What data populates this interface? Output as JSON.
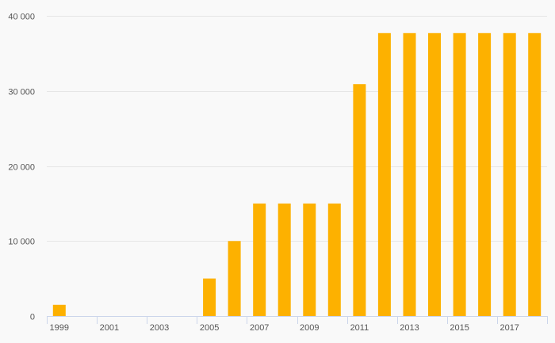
{
  "chart_data": {
    "type": "bar",
    "title": "",
    "xlabel": "",
    "ylabel": "",
    "categories": [
      "1999",
      "2000",
      "2001",
      "2002",
      "2003",
      "2004",
      "2005",
      "2006",
      "2007",
      "2008",
      "2009",
      "2010",
      "2011",
      "2012",
      "2013",
      "2014",
      "2015",
      "2016",
      "2017",
      "2018"
    ],
    "x_tick_labels": [
      "1999",
      "2001",
      "2003",
      "2005",
      "2007",
      "2009",
      "2011",
      "2013",
      "2015",
      "2017"
    ],
    "values": [
      1500,
      0,
      0,
      0,
      0,
      0,
      5000,
      10000,
      15000,
      15000,
      15000,
      15000,
      30900,
      37700,
      37700,
      37700,
      37700,
      37700,
      37700,
      37700
    ],
    "ylim": [
      0,
      40000
    ],
    "y_ticks": [
      0,
      10000,
      20000,
      30000,
      40000
    ],
    "y_tick_labels": [
      "0",
      "10 000",
      "20 000",
      "30 000",
      "40 000"
    ],
    "grid": true,
    "legend": "none",
    "colors": {
      "bar": "#fdb100",
      "grid": "#e6e6e6",
      "axis": "#ccd6eb",
      "text": "#555555",
      "background": "#f9f9f9"
    }
  }
}
